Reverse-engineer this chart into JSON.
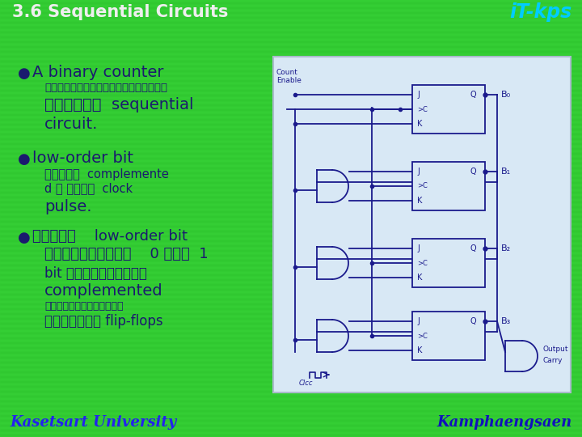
{
  "title": "3.6 Sequential Circuits",
  "title_color": "#f0f0f0",
  "logo_text": "iT-kps",
  "logo_color": "#00ccff",
  "bullet_color": "#1a1a6e",
  "footer_left": "Kasetsart University",
  "footer_right": "Kamphaengsaen",
  "footer_color_left": "#2222ee",
  "footer_color_right": "#1111bb",
  "bg_color": "#33cc33",
  "circuit_bg": "#d8e8f5",
  "dark_blue": "#1a1a8c"
}
